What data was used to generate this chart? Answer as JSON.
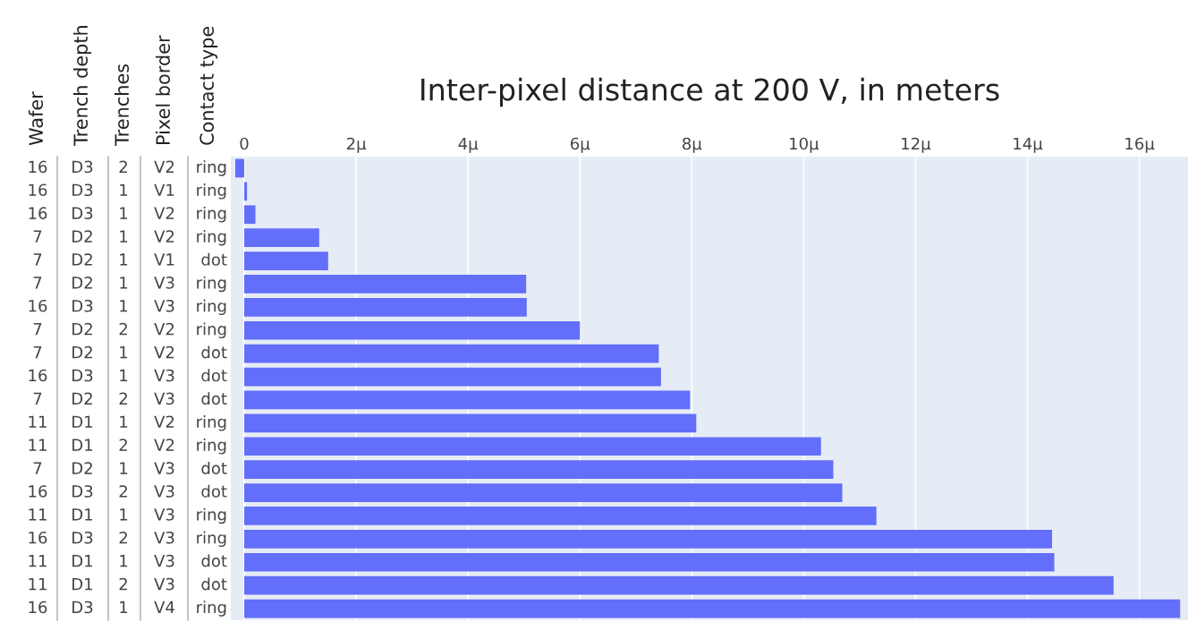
{
  "chart_data": {
    "type": "bar",
    "orientation": "horizontal",
    "title": "Inter-pixel distance at 200 V, in meters",
    "annotations": [
      "Wafer",
      "Trench depth",
      "Trenches",
      "Pixel border",
      "Contact type"
    ],
    "categories": [
      "16 D3 2 V2 ring",
      "16 D3 1 V1 ring",
      "16 D3 1 V2 ring",
      "7 D2 1 V2 ring",
      "7 D2 1 V1 dot",
      "7 D2 1 V3 ring",
      "16 D3 1 V3 ring",
      "7 D2 2 V2 ring",
      "7 D2 1 V2 dot",
      "16 D3 1 V3 dot",
      "7 D2 2 V3 dot",
      "11 D1 1 V2 ring",
      "11 D1 2 V2 ring",
      "7 D2 1 V3 dot",
      "16 D3 2 V3 dot",
      "11 D1 1 V3 ring",
      "16 D3 2 V3 ring",
      "11 D1 1 V3 dot",
      "11 D1 2 V3 dot",
      "16 D3 1 V4 ring"
    ],
    "values": [
      -0.16,
      0.05,
      0.2,
      1.34,
      1.5,
      5.04,
      5.05,
      6.0,
      7.41,
      7.45,
      7.97,
      8.08,
      10.31,
      10.53,
      10.69,
      11.3,
      14.44,
      14.48,
      15.54,
      16.73
    ],
    "color": "#636efa",
    "xlim": [
      -0.24,
      16.87
    ],
    "xticks": [
      0,
      {
        "value": 2,
        "label": "2μ"
      },
      {
        "value": 4,
        "label": "4μ"
      },
      {
        "value": 6,
        "label": "6μ"
      },
      {
        "value": 8,
        "label": "8μ"
      },
      {
        "value": 10,
        "label": "10μ"
      },
      {
        "value": 12,
        "label": "12μ"
      },
      {
        "value": 14,
        "label": "14μ"
      },
      {
        "value": 16,
        "label": "16μ"
      }
    ],
    "grid": "x",
    "legend": false
  }
}
